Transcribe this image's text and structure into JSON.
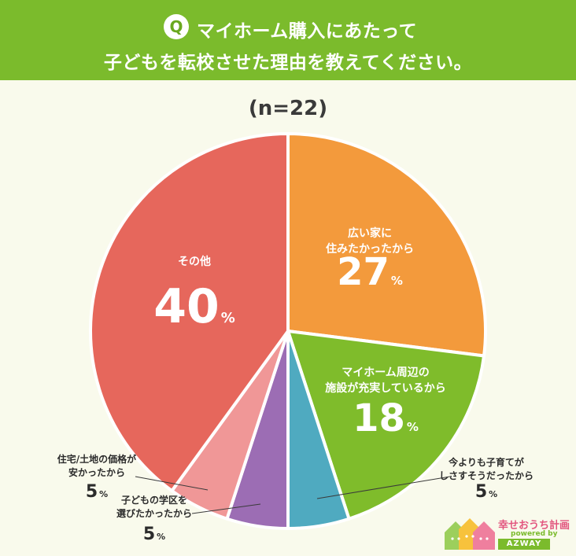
{
  "header": {
    "q_mark": "Q",
    "question_line1": "マイホーム購入にあたって",
    "question_line2": "子どもを転校させた理由を教えてください。"
  },
  "sample_size": "(n=22)",
  "colors": {
    "header_bg": "#7bbb2c",
    "page_bg": "#f9faec"
  },
  "chart_data": {
    "type": "pie",
    "start_angle_deg": 0,
    "direction": "clockwise",
    "slices": [
      {
        "label_lines": [
          "広い家に",
          "住みたかったから"
        ],
        "value": 27,
        "color": "#f39a3c",
        "value_text": "27",
        "unit": "%"
      },
      {
        "label_lines": [
          "マイホーム周辺の",
          "施設が充実しているから"
        ],
        "value": 18,
        "color": "#7fbc2b",
        "value_text": "18",
        "unit": "%"
      },
      {
        "label_lines": [
          "今よりも子育てが",
          "しさすそうだったから"
        ],
        "value": 5,
        "color": "#4faac0",
        "value_text": "5",
        "unit": "%"
      },
      {
        "label_lines": [
          "子どもの学区を",
          "選びたかったから"
        ],
        "value": 5,
        "color": "#9c6db4",
        "value_text": "5",
        "unit": "%"
      },
      {
        "label_lines": [
          "住宅/土地の価格が",
          "安かったから"
        ],
        "value": 5,
        "color": "#f09797",
        "value_text": "5",
        "unit": "%"
      },
      {
        "label_lines": [
          "その他"
        ],
        "value": 40,
        "color": "#e6675c",
        "value_text": "40",
        "unit": "%"
      }
    ]
  },
  "logo": {
    "name": "幸せおうち計画",
    "powered": "powered by",
    "brand": "AZWAY"
  }
}
